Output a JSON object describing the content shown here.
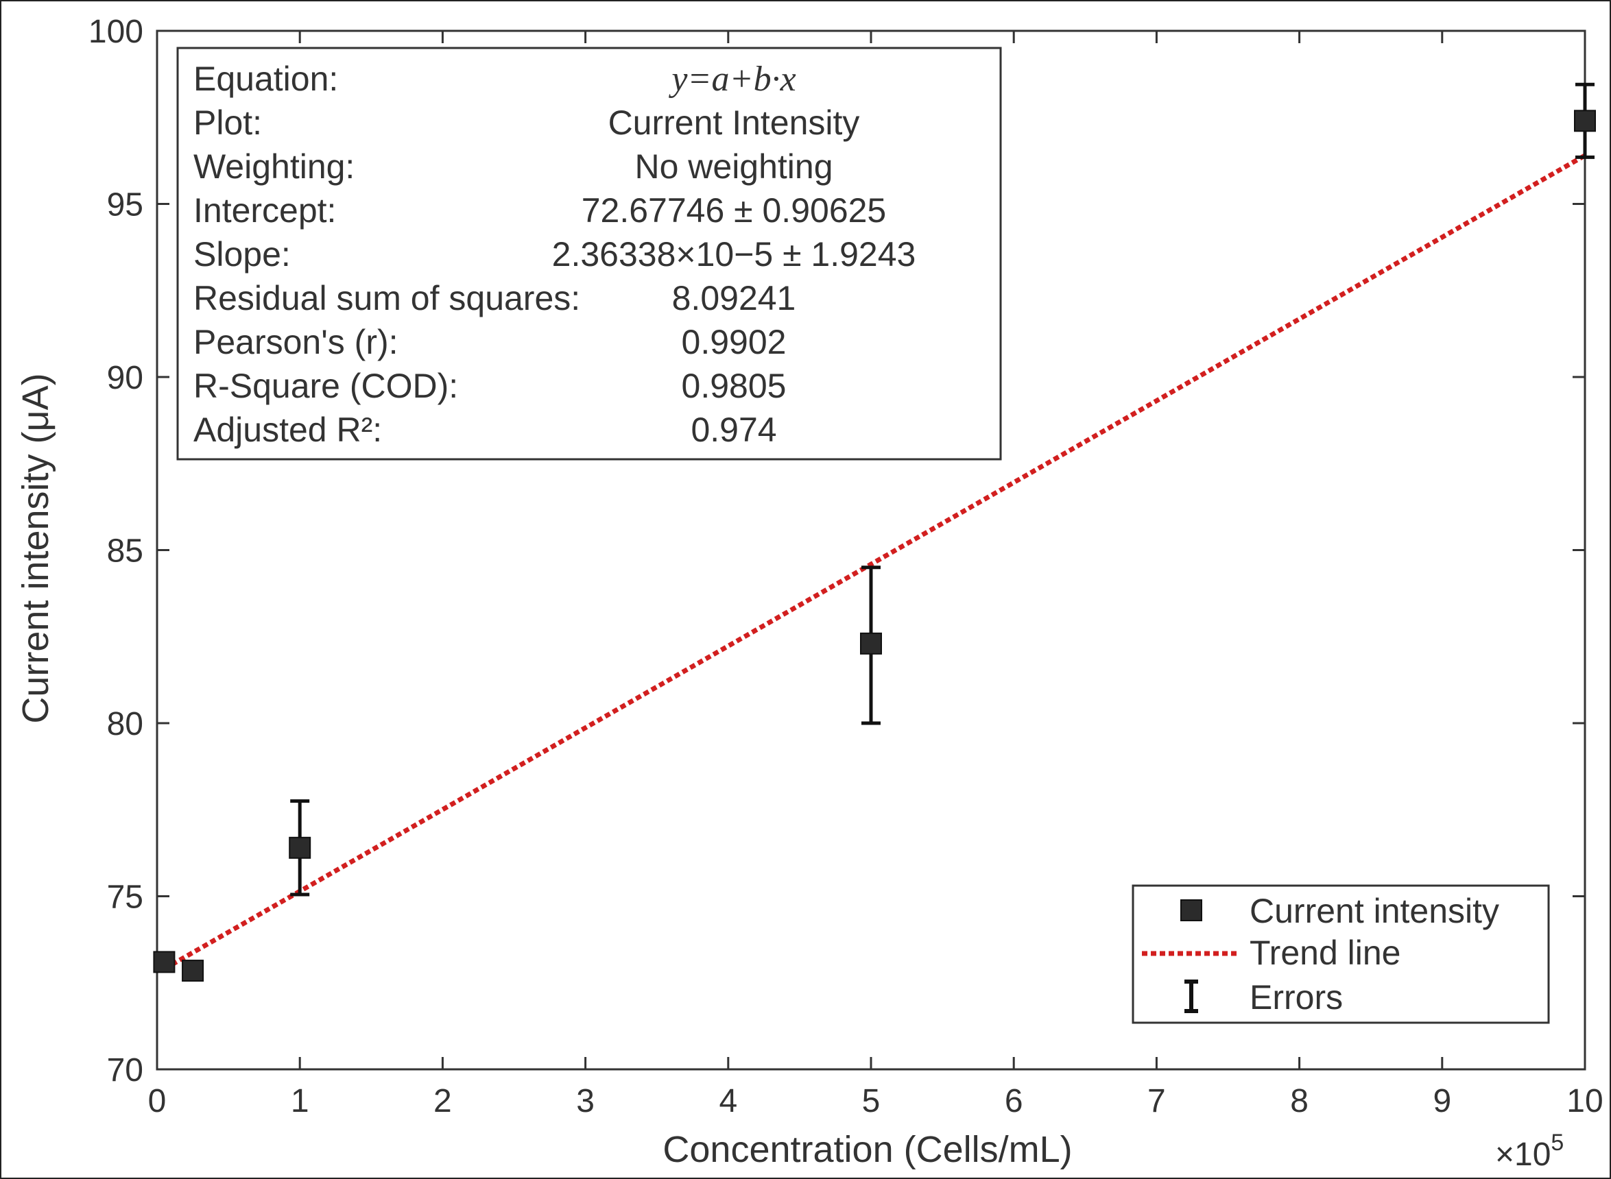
{
  "chart_data": {
    "type": "scatter",
    "xlabel": "Concentration (Cells/mL)",
    "ylabel": "Current  intensity  (μA)",
    "x_multiplier": "×10",
    "x_multiplier_exp": "5",
    "xlim": [
      0,
      10
    ],
    "ylim": [
      70,
      100
    ],
    "xticks": [
      "0",
      "1",
      "2",
      "3",
      "4",
      "5",
      "6",
      "7",
      "8",
      "9",
      "10"
    ],
    "yticks": [
      "70",
      "75",
      "80",
      "85",
      "90",
      "95",
      "100"
    ],
    "series": [
      {
        "name": "Current intensity",
        "x": [
          0.05,
          0.25,
          1,
          5,
          10
        ],
        "y": [
          73.1,
          72.85,
          76.4,
          82.3,
          97.4
        ],
        "err_low": [
          73.1,
          72.85,
          75.05,
          80.0,
          96.35
        ],
        "err_high": [
          73.1,
          72.85,
          77.75,
          84.5,
          98.45
        ],
        "color": "#2b2b2b"
      }
    ],
    "trend": {
      "name": "Trend line",
      "x": [
        0.05,
        10
      ],
      "y": [
        72.9,
        96.4
      ],
      "color": "#d21f1f"
    },
    "errors_label": "Errors",
    "legend_position": "bottom-right",
    "grid": false
  },
  "stats_box": {
    "rows": [
      {
        "label": "Equation:",
        "value": "y=a+b·x"
      },
      {
        "label": "Plot:",
        "value": "Current Intensity"
      },
      {
        "label": "Weighting:",
        "value": "No weighting"
      },
      {
        "label": "Intercept:",
        "value": "72.67746 ± 0.90625"
      },
      {
        "label": "Slope:",
        "value": "2.36338×10−5 ± 1.9243"
      },
      {
        "label": "Residual sum of squares:",
        "value": "8.09241"
      },
      {
        "label": "Pearson's (r):",
        "value": "0.9902"
      },
      {
        "label": "R-Square (COD):",
        "value": "0.9805"
      },
      {
        "label": "Adjusted R²:",
        "value": "0.974"
      }
    ]
  }
}
